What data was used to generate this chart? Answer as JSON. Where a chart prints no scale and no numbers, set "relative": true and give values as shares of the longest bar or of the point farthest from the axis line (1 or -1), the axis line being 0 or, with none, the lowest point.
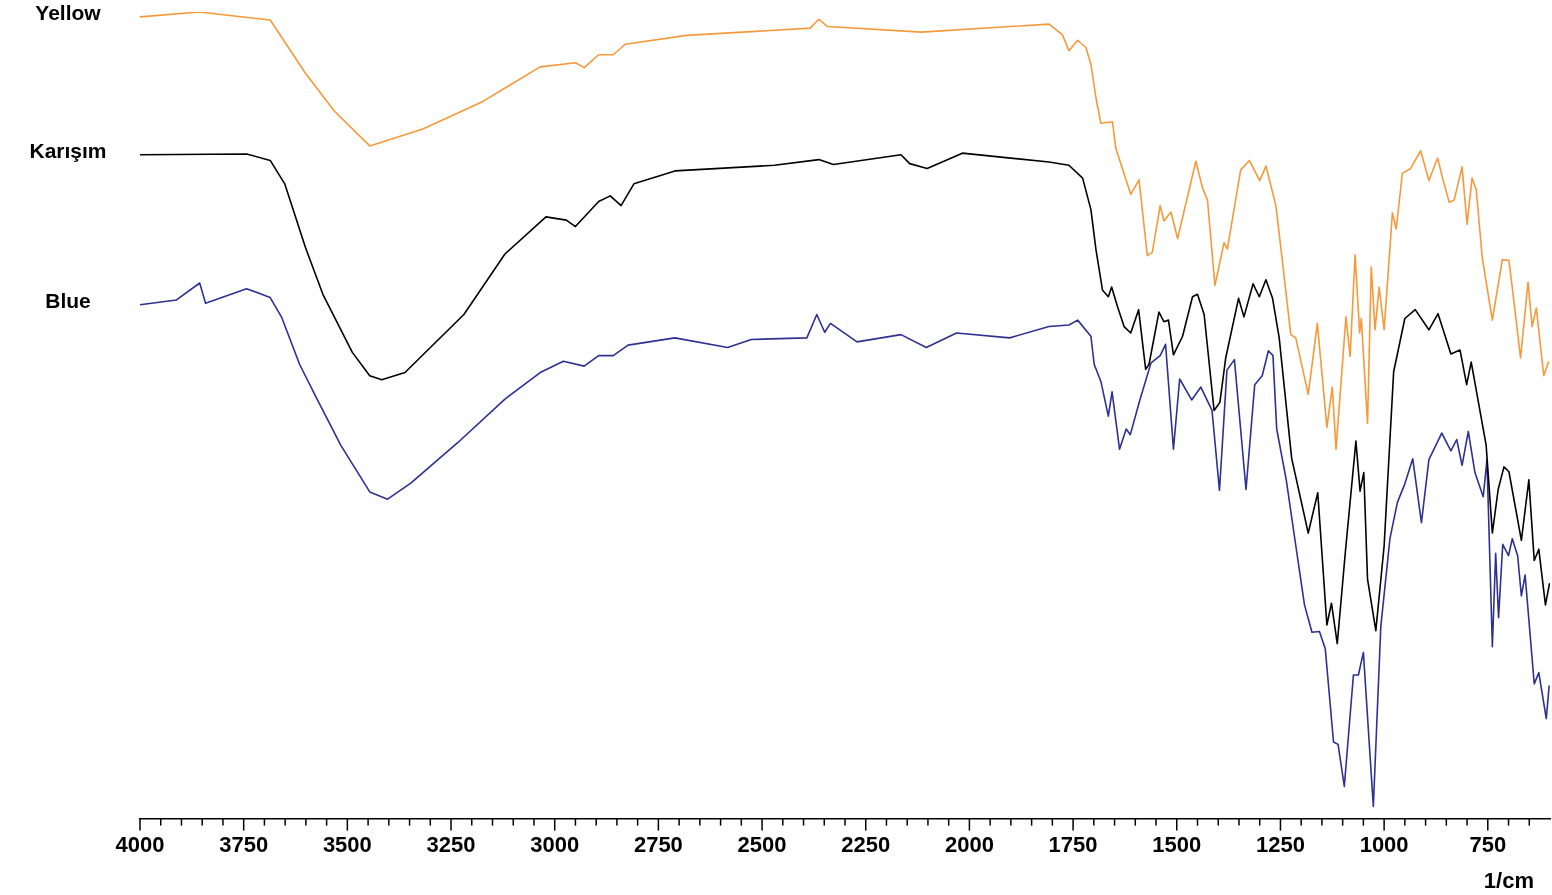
{
  "chart_data": {
    "type": "line",
    "relative": true,
    "xlabel": "1/cm",
    "xlim": [
      4000,
      600
    ],
    "xticks": [
      4000,
      {
        "value": 3950,
        "label": null
      },
      {
        "value": 3900,
        "label": null
      },
      {
        "value": 3850,
        "label": null
      },
      {
        "value": 3800,
        "label": null
      },
      3750,
      {
        "value": 3700,
        "label": null
      },
      {
        "value": 3650,
        "label": null
      },
      {
        "value": 3600,
        "label": null
      },
      {
        "value": 3550,
        "label": null
      },
      3500,
      {
        "value": 3450,
        "label": null
      },
      {
        "value": 3400,
        "label": null
      },
      {
        "value": 3350,
        "label": null
      },
      {
        "value": 3300,
        "label": null
      },
      3250,
      {
        "value": 3200,
        "label": null
      },
      {
        "value": 3150,
        "label": null
      },
      {
        "value": 3100,
        "label": null
      },
      {
        "value": 3050,
        "label": null
      },
      3000,
      {
        "value": 2950,
        "label": null
      },
      {
        "value": 2900,
        "label": null
      },
      {
        "value": 2850,
        "label": null
      },
      {
        "value": 2800,
        "label": null
      },
      2750,
      {
        "value": 2700,
        "label": null
      },
      {
        "value": 2650,
        "label": null
      },
      {
        "value": 2600,
        "label": null
      },
      {
        "value": 2550,
        "label": null
      },
      2500,
      {
        "value": 2450,
        "label": null
      },
      {
        "value": 2400,
        "label": null
      },
      {
        "value": 2350,
        "label": null
      },
      {
        "value": 2300,
        "label": null
      },
      2250,
      {
        "value": 2200,
        "label": null
      },
      {
        "value": 2150,
        "label": null
      },
      {
        "value": 2100,
        "label": null
      },
      {
        "value": 2050,
        "label": null
      },
      2000,
      {
        "value": 1950,
        "label": null
      },
      {
        "value": 1900,
        "label": null
      },
      {
        "value": 1850,
        "label": null
      },
      {
        "value": 1800,
        "label": null
      },
      1750,
      {
        "value": 1700,
        "label": null
      },
      {
        "value": 1650,
        "label": null
      },
      {
        "value": 1600,
        "label": null
      },
      {
        "value": 1550,
        "label": null
      },
      1500,
      {
        "value": 1450,
        "label": null
      },
      {
        "value": 1400,
        "label": null
      },
      {
        "value": 1350,
        "label": null
      },
      {
        "value": 1300,
        "label": null
      },
      1250,
      {
        "value": 1200,
        "label": null
      },
      {
        "value": 1150,
        "label": null
      },
      {
        "value": 1100,
        "label": null
      },
      {
        "value": 1050,
        "label": null
      },
      1000,
      {
        "value": 950,
        "label": null
      },
      {
        "value": 900,
        "label": null
      },
      {
        "value": 850,
        "label": null
      },
      {
        "value": 800,
        "label": null
      },
      750,
      {
        "value": 700,
        "label": null
      },
      {
        "value": 650,
        "label": null
      }
    ],
    "series": [
      {
        "name": "Yellow",
        "color": "#f7993a",
        "x": [
          4000,
          3857,
          3686,
          3601,
          3531,
          3446,
          3318,
          3177,
          3035,
          2950,
          2929,
          2894,
          2859,
          2830,
          2682,
          2384,
          2363,
          2342,
          2116,
          1808,
          1776,
          1760,
          1739,
          1719,
          1707,
          1695,
          1683,
          1655,
          1647,
          1611,
          1591,
          1571,
          1559,
          1540,
          1531,
          1514,
          1498,
          1454,
          1438,
          1426,
          1408,
          1386,
          1378,
          1346,
          1325,
          1300,
          1285,
          1261,
          1245,
          1225,
          1213,
          1183,
          1161,
          1138,
          1125,
          1116,
          1092,
          1082,
          1070,
          1059,
          1055,
          1040,
          1031,
          1022,
          1012,
          1000,
          980,
          971,
          956,
          936,
          912,
          892,
          871,
          859,
          843,
          831,
          812,
          800,
          788,
          778,
          763,
          739,
          715,
          699,
          687,
          671,
          653,
          643,
          633,
          615,
          603
        ],
        "values": [
          0.994,
          1.0,
          0.99,
          0.924,
          0.877,
          0.834,
          0.855,
          0.888,
          0.932,
          0.937,
          0.931,
          0.947,
          0.947,
          0.96,
          0.971,
          0.98,
          0.991,
          0.982,
          0.975,
          0.985,
          0.972,
          0.952,
          0.965,
          0.956,
          0.935,
          0.894,
          0.862,
          0.864,
          0.831,
          0.774,
          0.792,
          0.698,
          0.702,
          0.76,
          0.741,
          0.752,
          0.719,
          0.815,
          0.782,
          0.767,
          0.661,
          0.714,
          0.706,
          0.804,
          0.816,
          0.791,
          0.809,
          0.76,
          0.69,
          0.6,
          0.596,
          0.526,
          0.614,
          0.485,
          0.535,
          0.458,
          0.622,
          0.573,
          0.699,
          0.602,
          0.62,
          0.49,
          0.684,
          0.606,
          0.659,
          0.606,
          0.751,
          0.731,
          0.8,
          0.806,
          0.828,
          0.791,
          0.819,
          0.794,
          0.764,
          0.767,
          0.808,
          0.737,
          0.794,
          0.78,
          0.694,
          0.618,
          0.693,
          0.692,
          0.641,
          0.571,
          0.665,
          0.61,
          0.633,
          0.549,
          0.567
        ]
      },
      {
        "name": "Karışım",
        "color": "#000000",
        "x": [
          4000,
          3743,
          3686,
          3651,
          3601,
          3559,
          3488,
          3446,
          3417,
          3361,
          3219,
          3120,
          3021,
          2972,
          2950,
          2894,
          2866,
          2840,
          2809,
          2710,
          2470,
          2363,
          2328,
          2165,
          2144,
          2102,
          2017,
          1808,
          1760,
          1727,
          1707,
          1695,
          1679,
          1665,
          1657,
          1643,
          1627,
          1611,
          1592,
          1575,
          1567,
          1543,
          1531,
          1520,
          1508,
          1486,
          1462,
          1450,
          1434,
          1410,
          1396,
          1382,
          1351,
          1338,
          1316,
          1301,
          1285,
          1269,
          1253,
          1223,
          1183,
          1160,
          1138,
          1127,
          1113,
          1093,
          1068,
          1058,
          1049,
          1040,
          1020,
          1000,
          977,
          950,
          925,
          892,
          870,
          839,
          817,
          801,
          790,
          754,
          739,
          725,
          711,
          699,
          669,
          651,
          638,
          627,
          611,
          601
        ],
        "values": [
          0.823,
          0.824,
          0.816,
          0.787,
          0.708,
          0.65,
          0.578,
          0.549,
          0.544,
          0.553,
          0.625,
          0.7,
          0.746,
          0.742,
          0.734,
          0.765,
          0.772,
          0.76,
          0.787,
          0.803,
          0.81,
          0.817,
          0.811,
          0.823,
          0.812,
          0.806,
          0.825,
          0.814,
          0.81,
          0.794,
          0.755,
          0.706,
          0.655,
          0.647,
          0.659,
          0.635,
          0.61,
          0.602,
          0.631,
          0.557,
          0.563,
          0.628,
          0.616,
          0.618,
          0.575,
          0.598,
          0.647,
          0.65,
          0.625,
          0.506,
          0.516,
          0.571,
          0.645,
          0.622,
          0.663,
          0.647,
          0.668,
          0.645,
          0.596,
          0.447,
          0.354,
          0.404,
          0.24,
          0.267,
          0.217,
          0.333,
          0.468,
          0.406,
          0.429,
          0.297,
          0.233,
          0.338,
          0.554,
          0.62,
          0.631,
          0.606,
          0.626,
          0.576,
          0.581,
          0.538,
          0.566,
          0.463,
          0.354,
          0.408,
          0.436,
          0.43,
          0.345,
          0.42,
          0.32,
          0.334,
          0.265,
          0.292
        ]
      },
      {
        "name": "Blue",
        "color": "#2e3192",
        "x": [
          4000,
          3912,
          3856,
          3842,
          3743,
          3686,
          3658,
          3615,
          3573,
          3516,
          3446,
          3403,
          3347,
          3234,
          3120,
          3035,
          2979,
          2929,
          2894,
          2859,
          2823,
          2710,
          2583,
          2526,
          2392,
          2368,
          2349,
          2335,
          2271,
          2165,
          2104,
          2031,
          1903,
          1808,
          1760,
          1739,
          1707,
          1699,
          1683,
          1665,
          1656,
          1638,
          1622,
          1612,
          1589,
          1562,
          1540,
          1527,
          1508,
          1493,
          1464,
          1442,
          1415,
          1397,
          1379,
          1361,
          1333,
          1312,
          1294,
          1279,
          1268,
          1259,
          1236,
          1214,
          1192,
          1174,
          1156,
          1142,
          1122,
          1111,
          1096,
          1074,
          1062,
          1050,
          1026,
          1008,
          986,
          968,
          950,
          931,
          910,
          892,
          861,
          839,
          825,
          812,
          797,
          781,
          761,
          752,
          739,
          731,
          724,
          714,
          700,
          691,
          678,
          669,
          660,
          638,
          627,
          609,
          602
        ],
        "values": [
          0.637,
          0.643,
          0.664,
          0.639,
          0.657,
          0.646,
          0.621,
          0.563,
          0.52,
          0.463,
          0.405,
          0.396,
          0.416,
          0.466,
          0.52,
          0.553,
          0.567,
          0.561,
          0.574,
          0.574,
          0.587,
          0.596,
          0.584,
          0.594,
          0.596,
          0.625,
          0.603,
          0.614,
          0.591,
          0.6,
          0.584,
          0.602,
          0.596,
          0.61,
          0.612,
          0.618,
          0.598,
          0.563,
          0.542,
          0.499,
          0.529,
          0.458,
          0.483,
          0.476,
          0.519,
          0.565,
          0.574,
          0.588,
          0.458,
          0.545,
          0.519,
          0.535,
          0.506,
          0.407,
          0.556,
          0.569,
          0.408,
          0.538,
          0.549,
          0.58,
          0.574,
          0.483,
          0.42,
          0.342,
          0.265,
          0.231,
          0.232,
          0.211,
          0.095,
          0.092,
          0.04,
          0.178,
          0.178,
          0.206,
          0.015,
          0.238,
          0.347,
          0.392,
          0.415,
          0.446,
          0.367,
          0.445,
          0.478,
          0.456,
          0.47,
          0.438,
          0.48,
          0.429,
          0.399,
          0.445,
          0.213,
          0.329,
          0.249,
          0.34,
          0.326,
          0.347,
          0.326,
          0.276,
          0.302,
          0.167,
          0.181,
          0.124,
          0.165
        ]
      }
    ]
  }
}
